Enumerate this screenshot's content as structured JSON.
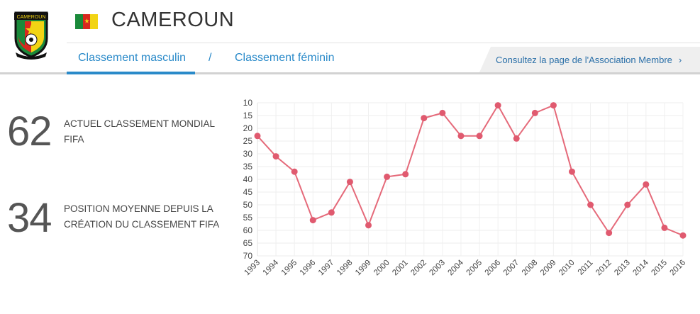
{
  "header": {
    "country": "CAMEROUN",
    "crest_text": "CAMEROUN",
    "flag_colors": [
      "#1a8a3a",
      "#d8281e",
      "#f2d414"
    ]
  },
  "tabs": {
    "men": "Classement masculin",
    "separator": "/",
    "women": "Classement féminin"
  },
  "association_link": {
    "label": "Consultez la page de l'Association Membre",
    "chevron": "›"
  },
  "stats": [
    {
      "value": "62",
      "label": "ACTUEL CLASSEMENT MONDIAL FIFA"
    },
    {
      "value": "34",
      "label": "POSITION MOYENNE DEPUIS LA CRÉATION DU CLASSEMENT FIFA"
    }
  ],
  "colors": {
    "accent": "#2a8ac9",
    "line": "#e56a7a",
    "point": "#e05a6f"
  },
  "chart_data": {
    "type": "line",
    "categories": [
      "1993",
      "1994",
      "1995",
      "1996",
      "1997",
      "1998",
      "1999",
      "2000",
      "2001",
      "2002",
      "2003",
      "2004",
      "2005",
      "2006",
      "2007",
      "2008",
      "2009",
      "2010",
      "2011",
      "2012",
      "2013",
      "2014",
      "2015",
      "2016"
    ],
    "series": [
      {
        "values": [
          23,
          31,
          37,
          56,
          53,
          41,
          58,
          39,
          38,
          16,
          14,
          23,
          23,
          11,
          24,
          14,
          11,
          37,
          50,
          61,
          50,
          42,
          59,
          62
        ]
      }
    ],
    "y_ticks": [
      10,
      15,
      20,
      25,
      30,
      35,
      40,
      45,
      50,
      55,
      60,
      65,
      70
    ],
    "ylim": [
      10,
      70
    ],
    "y_reversed": true,
    "grid": true
  }
}
